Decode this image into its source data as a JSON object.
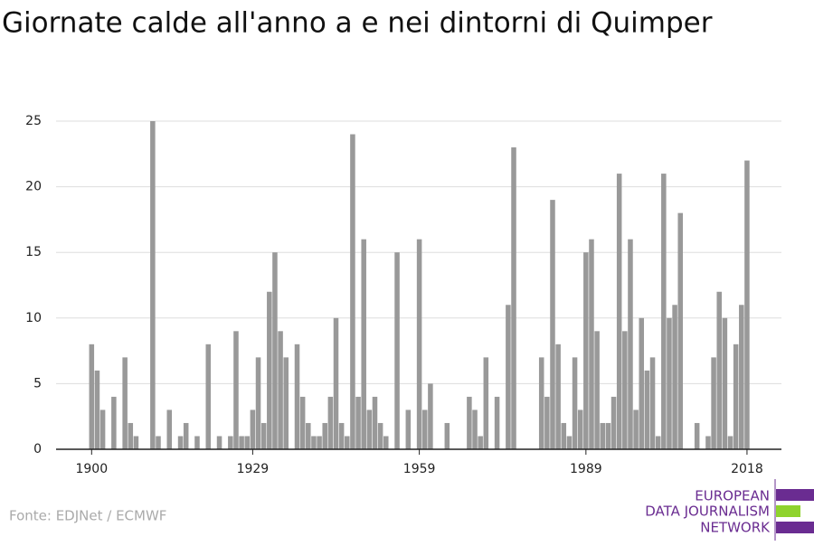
{
  "chart_data": {
    "type": "bar",
    "title": "Giornate calde all'anno a e nei dintorni di Quimper",
    "x": [
      1900,
      1901,
      1902,
      1903,
      1904,
      1905,
      1906,
      1907,
      1908,
      1909,
      1910,
      1911,
      1912,
      1913,
      1914,
      1915,
      1916,
      1917,
      1918,
      1919,
      1920,
      1921,
      1922,
      1923,
      1924,
      1925,
      1926,
      1927,
      1928,
      1929,
      1930,
      1931,
      1932,
      1933,
      1934,
      1935,
      1936,
      1937,
      1938,
      1939,
      1940,
      1941,
      1942,
      1943,
      1944,
      1945,
      1946,
      1947,
      1948,
      1949,
      1950,
      1951,
      1952,
      1953,
      1954,
      1955,
      1956,
      1957,
      1958,
      1959,
      1960,
      1961,
      1962,
      1963,
      1964,
      1965,
      1966,
      1967,
      1968,
      1969,
      1970,
      1971,
      1972,
      1973,
      1974,
      1975,
      1976,
      1977,
      1978,
      1979,
      1980,
      1981,
      1982,
      1983,
      1984,
      1985,
      1986,
      1987,
      1988,
      1989,
      1990,
      1991,
      1992,
      1993,
      1994,
      1995,
      1996,
      1997,
      1998,
      1999,
      2000,
      2001,
      2002,
      2003,
      2004,
      2005,
      2006,
      2007,
      2008,
      2009,
      2010,
      2011,
      2012,
      2013,
      2014,
      2015,
      2016,
      2017,
      2018
    ],
    "values": [
      8,
      6,
      3,
      0,
      4,
      0,
      7,
      2,
      1,
      0,
      0,
      25,
      1,
      0,
      3,
      0,
      1,
      2,
      0,
      1,
      0,
      8,
      0,
      1,
      0,
      1,
      9,
      1,
      1,
      3,
      7,
      2,
      12,
      15,
      9,
      7,
      0,
      8,
      4,
      2,
      1,
      1,
      2,
      4,
      10,
      2,
      1,
      24,
      4,
      16,
      3,
      4,
      2,
      1,
      0,
      15,
      0,
      3,
      0,
      16,
      3,
      5,
      0,
      0,
      2,
      0,
      0,
      0,
      4,
      3,
      1,
      7,
      0,
      4,
      0,
      11,
      23,
      0,
      0,
      0,
      0,
      7,
      4,
      19,
      8,
      2,
      1,
      7,
      3,
      15,
      16,
      9,
      2,
      2,
      4,
      21,
      9,
      16,
      3,
      10,
      6,
      7,
      1,
      21,
      10,
      11,
      18,
      0,
      0,
      2,
      0,
      1,
      7,
      12,
      10,
      1,
      8,
      11,
      22
    ],
    "color": "#999999",
    "xlim": [
      1893.6,
      2024.2
    ],
    "xticks": [
      1900,
      1929,
      1959,
      1989,
      2018
    ],
    "ylim": [
      0,
      25
    ],
    "yticks": [
      0,
      5,
      10,
      15,
      20,
      25
    ],
    "grid": true,
    "source": "Fonte: EDJNet / ECMWF",
    "logo": [
      "EUROPEAN",
      "DATA JOURNALISM",
      "NETWORK"
    ]
  }
}
